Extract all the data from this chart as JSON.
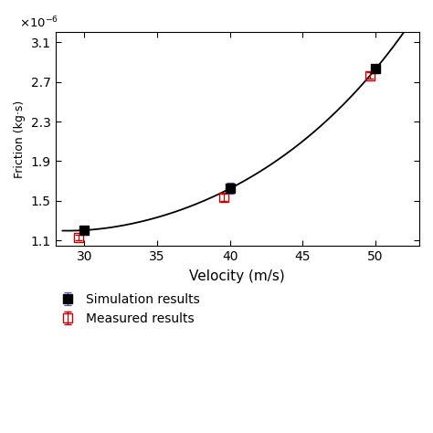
{
  "velocity": [
    30,
    40,
    50
  ],
  "sim_values": [
    1.205e-06,
    1.625e-06,
    2.83e-06
  ],
  "sim_yerr": [
    2.5e-08,
    5.5e-08,
    3.8e-08
  ],
  "sim_ecolor": "#5555bb",
  "meas_values": [
    1.13e-06,
    1.535e-06,
    2.765e-06
  ],
  "meas_yerr": [
    2.5e-08,
    3.8e-08,
    2.8e-08
  ],
  "meas_color": "#cc0000",
  "curve_x_start": 28.5,
  "curve_x_end": 53,
  "xlabel": "Velocity (m/s)",
  "ylabel": "Friction (kg·s)",
  "sim_label": "Simulation results",
  "meas_label": "Measured results",
  "ylim": [
    1.05e-06,
    3.2e-06
  ],
  "xlim": [
    28.0,
    53.0
  ],
  "yticks": [
    1.1e-06,
    1.5e-06,
    1.9e-06,
    2.3e-06,
    2.7e-06,
    3.1e-06
  ],
  "xticks": [
    30,
    35,
    40,
    45,
    50
  ],
  "sim_color": "#000000",
  "line_color": "#000000",
  "bg_color": "#ffffff"
}
